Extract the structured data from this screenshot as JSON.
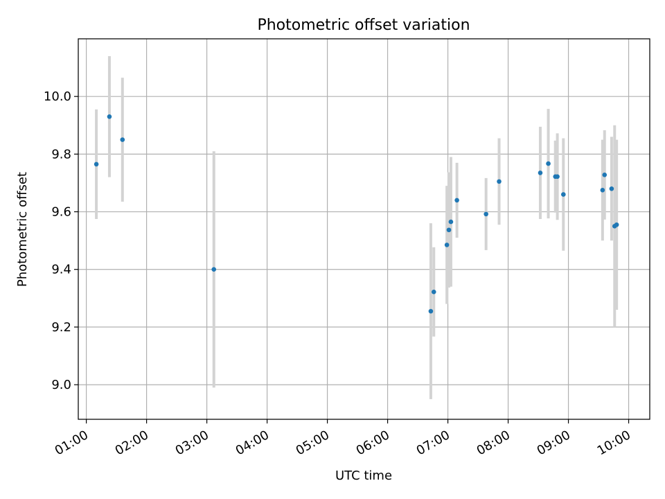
{
  "chart_data": {
    "type": "scatter",
    "title": "Photometric offset variation",
    "xlabel": "UTC time",
    "ylabel": "Photometric offset",
    "x_ticks": [
      "01:00",
      "02:00",
      "03:00",
      "04:00",
      "05:00",
      "06:00",
      "07:00",
      "08:00",
      "09:00",
      "10:00"
    ],
    "y_ticks": [
      "9.0",
      "9.2",
      "9.4",
      "9.6",
      "9.8",
      "10.0"
    ],
    "xlim": [
      "00:52",
      "10:21"
    ],
    "ylim": [
      8.88,
      10.2
    ],
    "grid": true,
    "marker_color": "#1f77b4",
    "errorbar_color": "#d3d3d3",
    "points": [
      {
        "time": "01:10",
        "y": 9.765,
        "err": 0.19
      },
      {
        "time": "01:23",
        "y": 9.93,
        "err": 0.21
      },
      {
        "time": "01:36",
        "y": 9.85,
        "err": 0.215
      },
      {
        "time": "03:07",
        "y": 9.4,
        "err": 0.41
      },
      {
        "time": "06:43",
        "y": 9.255,
        "err": 0.305
      },
      {
        "time": "06:46",
        "y": 9.322,
        "err": 0.155
      },
      {
        "time": "06:59",
        "y": 9.485,
        "err": 0.205
      },
      {
        "time": "07:01",
        "y": 9.537,
        "err": 0.2
      },
      {
        "time": "07:03",
        "y": 9.565,
        "err": 0.225
      },
      {
        "time": "07:09",
        "y": 9.64,
        "err": 0.13
      },
      {
        "time": "07:38",
        "y": 9.592,
        "err": 0.125
      },
      {
        "time": "07:51",
        "y": 9.705,
        "err": 0.15
      },
      {
        "time": "08:32",
        "y": 9.735,
        "err": 0.16
      },
      {
        "time": "08:40",
        "y": 9.767,
        "err": 0.19
      },
      {
        "time": "08:47",
        "y": 9.722,
        "err": 0.125
      },
      {
        "time": "08:49",
        "y": 9.722,
        "err": 0.15
      },
      {
        "time": "08:55",
        "y": 9.66,
        "err": 0.195
      },
      {
        "time": "09:34",
        "y": 9.675,
        "err": 0.175
      },
      {
        "time": "09:36",
        "y": 9.728,
        "err": 0.155
      },
      {
        "time": "09:43",
        "y": 9.68,
        "err": 0.18
      },
      {
        "time": "09:46",
        "y": 9.55,
        "err": 0.35
      },
      {
        "time": "09:48",
        "y": 9.555,
        "err": 0.295
      }
    ]
  }
}
